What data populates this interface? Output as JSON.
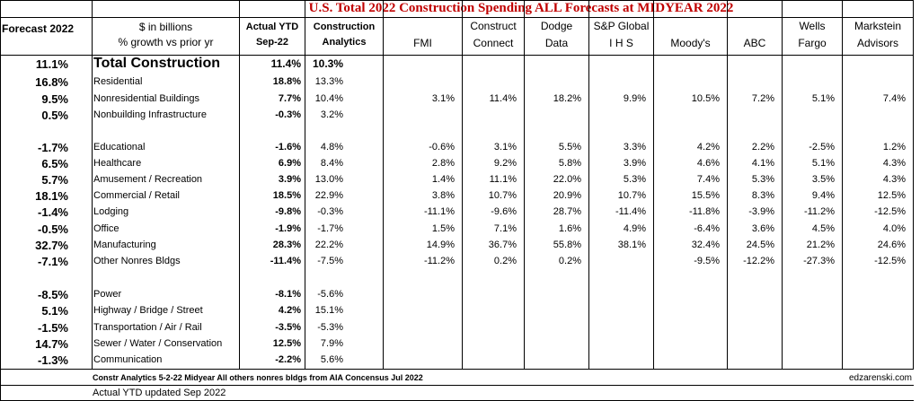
{
  "title": "U.S. Total 2022 Construction Spending ALL Forecasts at MIDYEAR 2022",
  "header": {
    "forecast_col": "Forecast 2022",
    "label_line1": "$ in billions",
    "label_line2": "% growth vs prior yr",
    "actual_line1": "Actual YTD",
    "actual_line2": "Sep-22",
    "ca_line1": "Construction",
    "ca_line2": "Analytics",
    "sources": [
      {
        "l1": "",
        "l2": "FMI"
      },
      {
        "l1": "Construct",
        "l2": "Connect"
      },
      {
        "l1": "Dodge",
        "l2": "Data"
      },
      {
        "l1": "S&P Global",
        "l2": "I H S"
      },
      {
        "l1": "",
        "l2": "Moody's"
      },
      {
        "l1": "",
        "l2": "ABC"
      },
      {
        "l1": "Wells",
        "l2": "Fargo"
      },
      {
        "l1": "Markstein",
        "l2": "Advisors"
      }
    ]
  },
  "rows": [
    {
      "forecast": "11.1%",
      "label": "Total Construction",
      "actual": "11.4%",
      "ca": "10.3%",
      "vals": [
        "",
        "",
        "",
        "",
        "",
        "",
        "",
        ""
      ]
    },
    {
      "forecast": "16.8%",
      "label": "Residential",
      "actual": "18.8%",
      "ca": "13.3%",
      "vals": [
        "",
        "",
        "",
        "",
        "",
        "",
        "",
        ""
      ]
    },
    {
      "forecast": "9.5%",
      "label": "Nonresidential Buildings",
      "actual": "7.7%",
      "ca": "10.4%",
      "vals": [
        "3.1%",
        "11.4%",
        "18.2%",
        "9.9%",
        "10.5%",
        "7.2%",
        "5.1%",
        "7.4%"
      ]
    },
    {
      "forecast": "0.5%",
      "label": "Nonbuilding Infrastructure",
      "actual": "-0.3%",
      "ca": "3.2%",
      "vals": [
        "",
        "",
        "",
        "",
        "",
        "",
        "",
        ""
      ]
    },
    {
      "forecast": "-1.7%",
      "label": "Educational",
      "actual": "-1.6%",
      "ca": "4.8%",
      "vals": [
        "-0.6%",
        "3.1%",
        "5.5%",
        "3.3%",
        "4.2%",
        "2.2%",
        "-2.5%",
        "1.2%"
      ]
    },
    {
      "forecast": "6.5%",
      "label": "Healthcare",
      "actual": "6.9%",
      "ca": "8.4%",
      "vals": [
        "2.8%",
        "9.2%",
        "5.8%",
        "3.9%",
        "4.6%",
        "4.1%",
        "5.1%",
        "4.3%"
      ]
    },
    {
      "forecast": "5.7%",
      "label": "Amusement / Recreation",
      "actual": "3.9%",
      "ca": "13.0%",
      "vals": [
        "1.4%",
        "11.1%",
        "22.0%",
        "5.3%",
        "7.4%",
        "5.3%",
        "3.5%",
        "4.3%"
      ]
    },
    {
      "forecast": "18.1%",
      "label": "Commercial / Retail",
      "actual": "18.5%",
      "ca": "22.9%",
      "vals": [
        "3.8%",
        "10.7%",
        "20.9%",
        "10.7%",
        "15.5%",
        "8.3%",
        "9.4%",
        "12.5%"
      ]
    },
    {
      "forecast": "-1.4%",
      "label": "Lodging",
      "actual": "-9.8%",
      "ca": "-0.3%",
      "vals": [
        "-11.1%",
        "-9.6%",
        "28.7%",
        "-11.4%",
        "-11.8%",
        "-3.9%",
        "-11.2%",
        "-12.5%"
      ]
    },
    {
      "forecast": "-0.5%",
      "label": "Office",
      "actual": "-1.9%",
      "ca": "-1.7%",
      "vals": [
        "1.5%",
        "7.1%",
        "1.6%",
        "4.9%",
        "-6.4%",
        "3.6%",
        "4.5%",
        "4.0%"
      ]
    },
    {
      "forecast": "32.7%",
      "label": "Manufacturing",
      "actual": "28.3%",
      "ca": "22.2%",
      "vals": [
        "14.9%",
        "36.7%",
        "55.8%",
        "38.1%",
        "32.4%",
        "24.5%",
        "21.2%",
        "24.6%"
      ]
    },
    {
      "forecast": "-7.1%",
      "label": "Other Nonres Bldgs",
      "actual": "-11.4%",
      "ca": "-7.5%",
      "vals": [
        "-11.2%",
        "0.2%",
        "0.2%",
        "",
        "-9.5%",
        "-12.2%",
        "-27.3%",
        "-12.5%"
      ]
    },
    {
      "forecast": "-8.5%",
      "label": "Power",
      "actual": "-8.1%",
      "ca": "-5.6%",
      "vals": [
        "",
        "",
        "",
        "",
        "",
        "",
        "",
        ""
      ]
    },
    {
      "forecast": "5.1%",
      "label": "Highway / Bridge / Street",
      "actual": "4.2%",
      "ca": "15.1%",
      "vals": [
        "",
        "",
        "",
        "",
        "",
        "",
        "",
        ""
      ]
    },
    {
      "forecast": "-1.5%",
      "label": "Transportation / Air / Rail",
      "actual": "-3.5%",
      "ca": "-5.3%",
      "vals": [
        "",
        "",
        "",
        "",
        "",
        "",
        "",
        ""
      ]
    },
    {
      "forecast": "14.7%",
      "label": "Sewer / Water / Conservation",
      "actual": "12.5%",
      "ca": "7.9%",
      "vals": [
        "",
        "",
        "",
        "",
        "",
        "",
        "",
        ""
      ]
    },
    {
      "forecast": "-1.3%",
      "label": "Communication",
      "actual": "-2.2%",
      "ca": "5.6%",
      "vals": [
        "",
        "",
        "",
        "",
        "",
        "",
        "",
        ""
      ]
    }
  ],
  "footnote1": "Constr Analytics 5-2-22 Midyear All others nonres bldgs from AIA Concensus Jul 2022",
  "footnote2": "Actual YTD updated Sep 2022",
  "credit": "edzarenski.com"
}
